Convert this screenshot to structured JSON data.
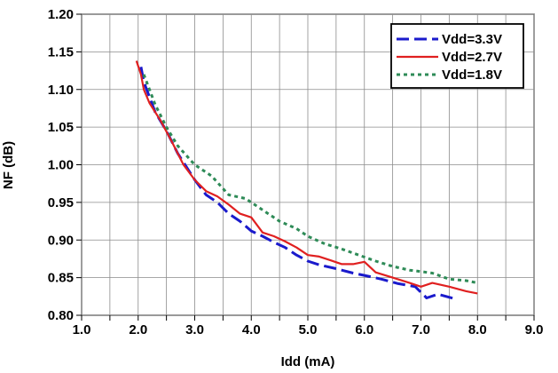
{
  "chart_data": {
    "type": "line",
    "title": "",
    "xlabel": "Idd (mA)",
    "ylabel": "NF (dB)",
    "xlim": [
      1.0,
      9.0
    ],
    "ylim": [
      0.8,
      1.2
    ],
    "x_ticks": [
      "1.0",
      "2.0",
      "3.0",
      "4.0",
      "5.0",
      "6.0",
      "7.0",
      "8.0",
      "9.0"
    ],
    "y_ticks": [
      "0.80",
      "0.85",
      "0.90",
      "0.95",
      "1.00",
      "1.05",
      "1.10",
      "1.15",
      "1.20"
    ],
    "grid": true,
    "legend_position": "top-right",
    "series": [
      {
        "name": "Vdd=3.3V",
        "color": "#1a1acc",
        "style": "dashed",
        "points": [
          [
            2.05,
            1.13
          ],
          [
            2.1,
            1.11
          ],
          [
            2.2,
            1.09
          ],
          [
            2.3,
            1.07
          ],
          [
            2.5,
            1.045
          ],
          [
            2.7,
            1.015
          ],
          [
            3.0,
            0.98
          ],
          [
            3.2,
            0.96
          ],
          [
            3.4,
            0.95
          ],
          [
            3.6,
            0.935
          ],
          [
            3.8,
            0.925
          ],
          [
            4.0,
            0.912
          ],
          [
            4.2,
            0.905
          ],
          [
            4.4,
            0.897
          ],
          [
            4.6,
            0.89
          ],
          [
            4.8,
            0.88
          ],
          [
            5.0,
            0.872
          ],
          [
            5.2,
            0.867
          ],
          [
            5.5,
            0.862
          ],
          [
            5.8,
            0.856
          ],
          [
            6.0,
            0.853
          ],
          [
            6.3,
            0.848
          ],
          [
            6.6,
            0.842
          ],
          [
            6.9,
            0.838
          ],
          [
            7.1,
            0.823
          ],
          [
            7.3,
            0.828
          ],
          [
            7.6,
            0.822
          ]
        ]
      },
      {
        "name": "Vdd=2.7V",
        "color": "#e02020",
        "style": "solid",
        "points": [
          [
            1.97,
            1.138
          ],
          [
            2.05,
            1.12
          ],
          [
            2.1,
            1.1
          ],
          [
            2.2,
            1.082
          ],
          [
            2.4,
            1.058
          ],
          [
            2.6,
            1.03
          ],
          [
            2.8,
            1.0
          ],
          [
            3.0,
            0.98
          ],
          [
            3.2,
            0.965
          ],
          [
            3.4,
            0.958
          ],
          [
            3.6,
            0.947
          ],
          [
            3.8,
            0.935
          ],
          [
            4.0,
            0.93
          ],
          [
            4.2,
            0.91
          ],
          [
            4.4,
            0.905
          ],
          [
            4.6,
            0.898
          ],
          [
            4.8,
            0.89
          ],
          [
            5.0,
            0.88
          ],
          [
            5.2,
            0.878
          ],
          [
            5.4,
            0.873
          ],
          [
            5.6,
            0.868
          ],
          [
            5.8,
            0.868
          ],
          [
            6.0,
            0.871
          ],
          [
            6.2,
            0.857
          ],
          [
            6.5,
            0.85
          ],
          [
            6.8,
            0.843
          ],
          [
            7.0,
            0.838
          ],
          [
            7.2,
            0.843
          ],
          [
            7.5,
            0.838
          ],
          [
            7.8,
            0.832
          ],
          [
            8.0,
            0.829
          ]
        ]
      },
      {
        "name": "Vdd=1.8V",
        "color": "#2e8b57",
        "style": "dotted",
        "points": [
          [
            2.1,
            1.12
          ],
          [
            2.3,
            1.08
          ],
          [
            2.5,
            1.05
          ],
          [
            2.7,
            1.025
          ],
          [
            3.0,
            1.0
          ],
          [
            3.3,
            0.985
          ],
          [
            3.6,
            0.96
          ],
          [
            3.9,
            0.955
          ],
          [
            4.2,
            0.94
          ],
          [
            4.5,
            0.925
          ],
          [
            4.8,
            0.915
          ],
          [
            5.0,
            0.905
          ],
          [
            5.3,
            0.895
          ],
          [
            5.6,
            0.888
          ],
          [
            5.9,
            0.88
          ],
          [
            6.2,
            0.872
          ],
          [
            6.5,
            0.865
          ],
          [
            6.8,
            0.86
          ],
          [
            7.0,
            0.858
          ],
          [
            7.2,
            0.856
          ],
          [
            7.5,
            0.848
          ],
          [
            7.8,
            0.846
          ],
          [
            8.0,
            0.843
          ]
        ]
      }
    ]
  }
}
